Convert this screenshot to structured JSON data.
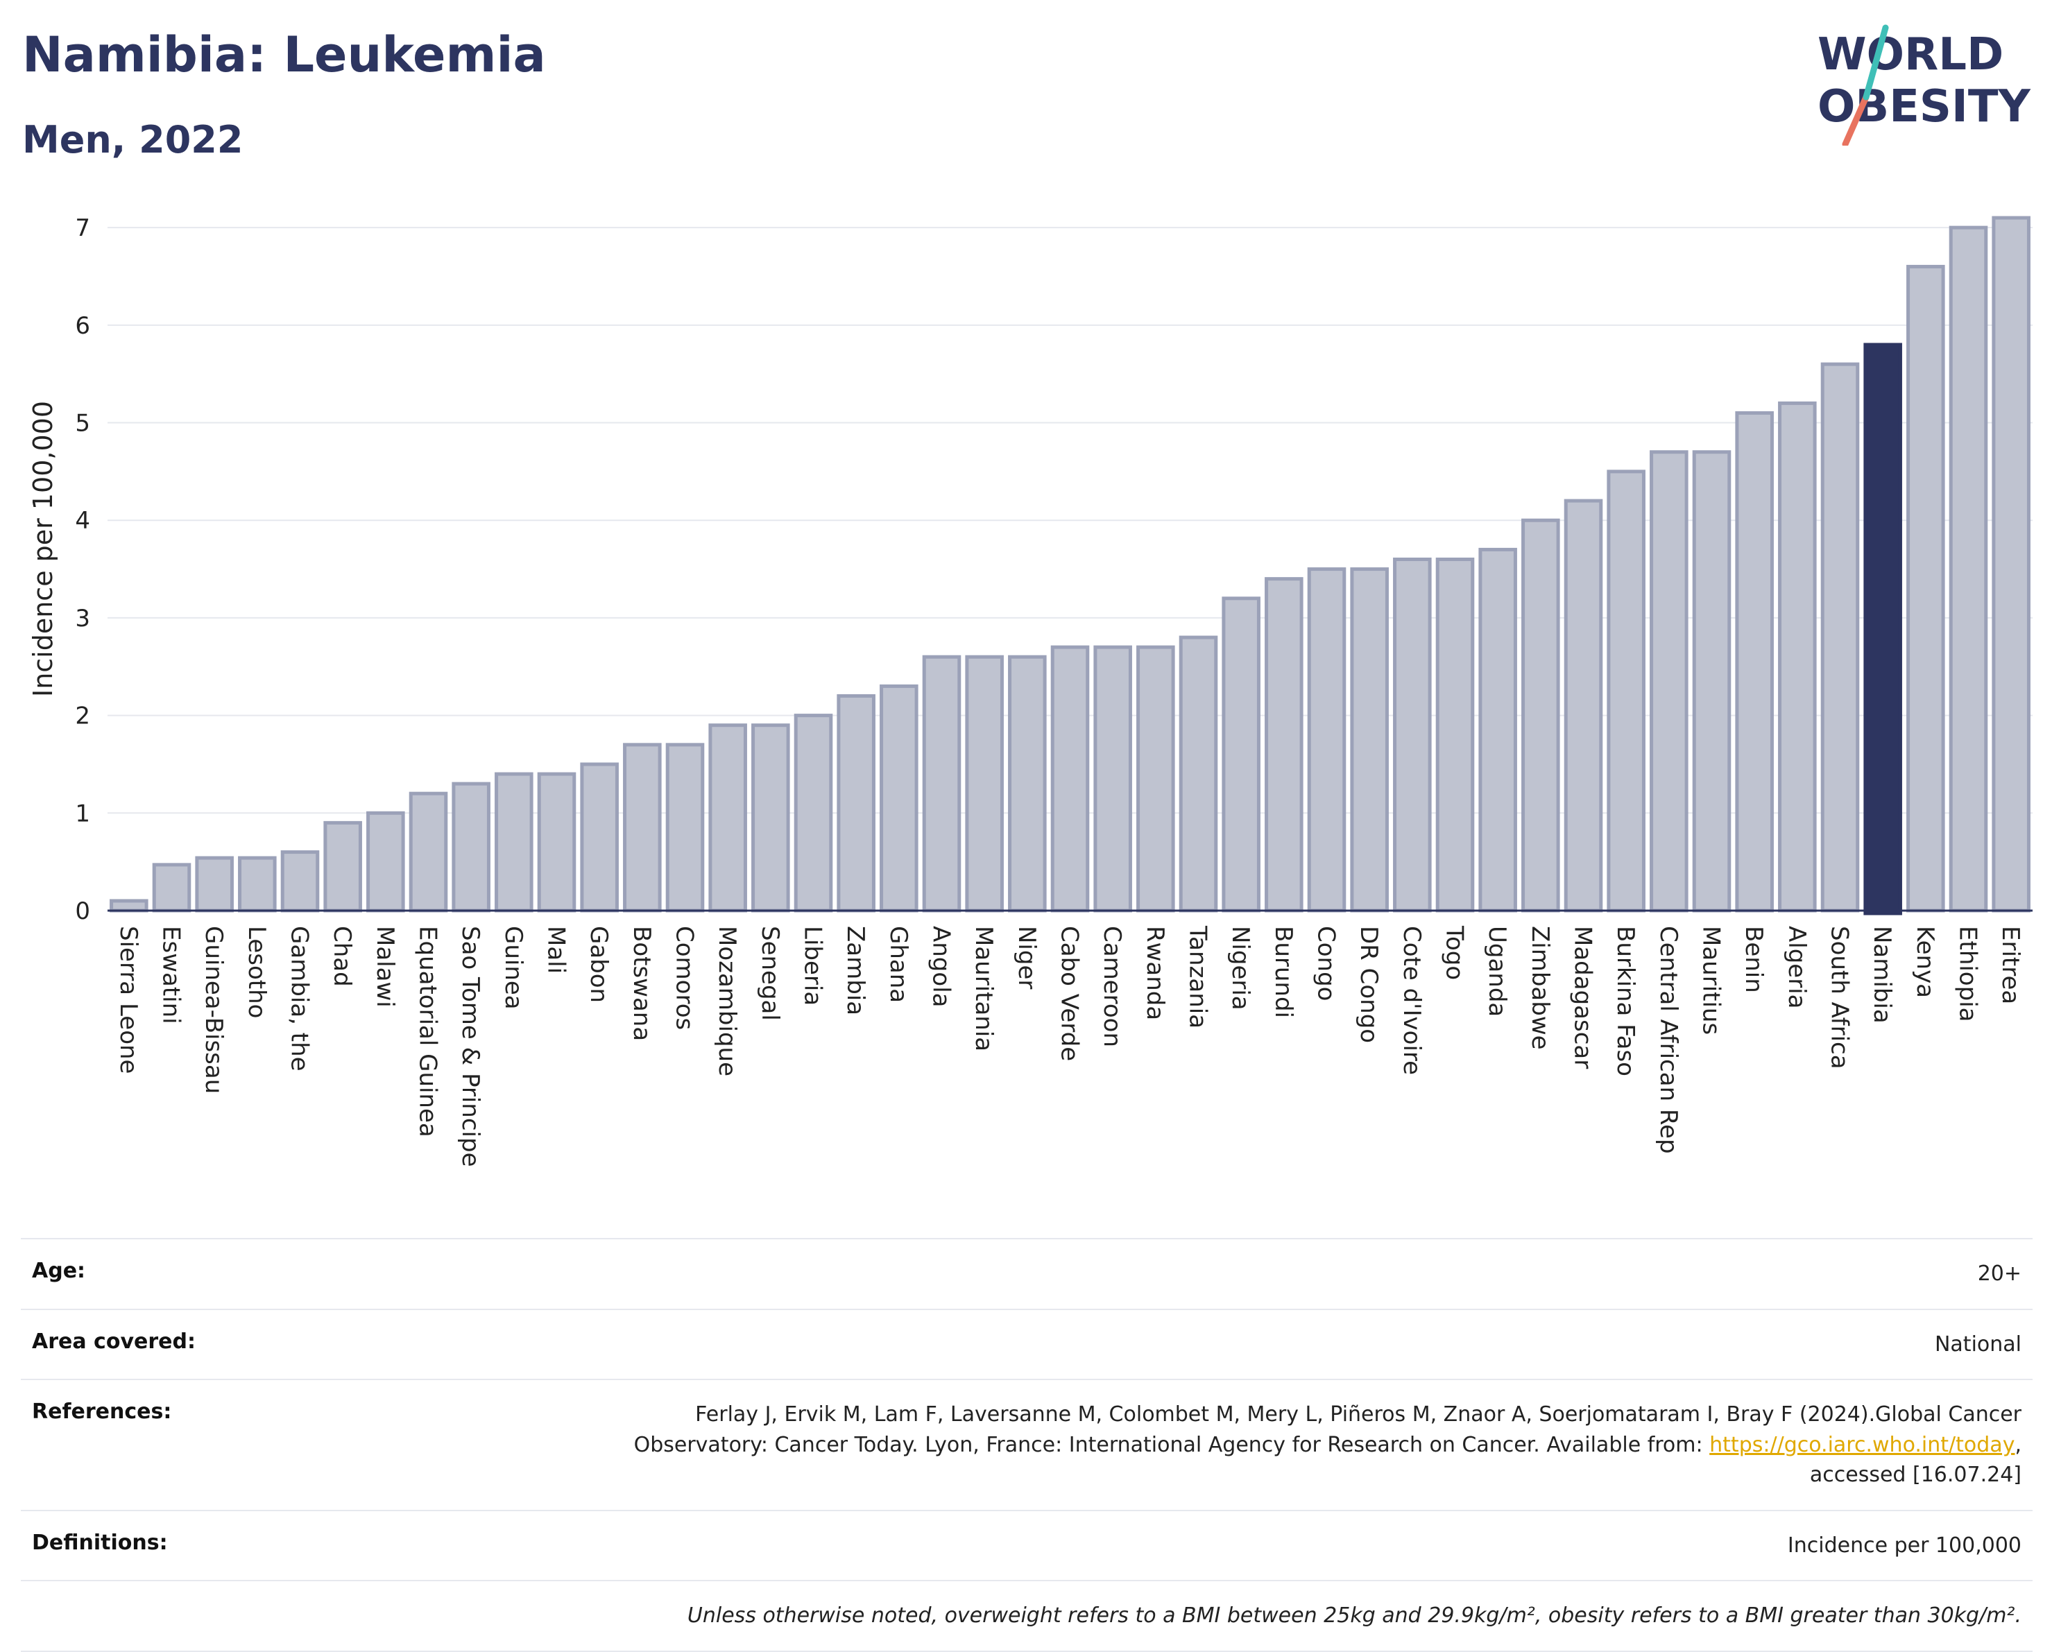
{
  "header": {
    "title": "Namibia: Leukemia",
    "subtitle": "Men, 2022",
    "logo_line1": "WORLD",
    "logo_line2": "OBESITY"
  },
  "colors": {
    "bar": "#bfc3d0",
    "bar_stroke": "#9ba1b8",
    "highlight": "#2d3560",
    "grid": "#e6e8ee",
    "text": "#222222"
  },
  "chart_data": {
    "type": "bar",
    "xlabel": "",
    "ylabel": "Incidence per 100,000",
    "ylim": [
      0,
      7.2
    ],
    "yticks": [
      0,
      1,
      2,
      3,
      4,
      5,
      6,
      7
    ],
    "grid": true,
    "highlight": "Namibia",
    "categories": [
      "Sierra Leone",
      "Eswatini",
      "Guinea-Bissau",
      "Lesotho",
      "Gambia, the",
      "Chad",
      "Malawi",
      "Equatorial Guinea",
      "Sao Tome & Principe",
      "Guinea",
      "Mali",
      "Gabon",
      "Botswana",
      "Comoros",
      "Mozambique",
      "Senegal",
      "Liberia",
      "Zambia",
      "Ghana",
      "Angola",
      "Mauritania",
      "Niger",
      "Cabo Verde",
      "Cameroon",
      "Rwanda",
      "Tanzania",
      "Nigeria",
      "Burundi",
      "Congo",
      "DR Congo",
      "Cote d'Ivoire",
      "Togo",
      "Uganda",
      "Zimbabwe",
      "Madagascar",
      "Burkina Faso",
      "Central African Rep",
      "Mauritius",
      "Benin",
      "Algeria",
      "South Africa",
      "Namibia",
      "Kenya",
      "Ethiopia",
      "Eritrea"
    ],
    "values": [
      0.1,
      0.47,
      0.54,
      0.54,
      0.6,
      0.9,
      1.0,
      1.2,
      1.3,
      1.4,
      1.4,
      1.5,
      1.7,
      1.7,
      1.9,
      1.9,
      2.0,
      2.2,
      2.3,
      2.6,
      2.6,
      2.6,
      2.7,
      2.7,
      2.7,
      2.8,
      3.2,
      3.4,
      3.5,
      3.5,
      3.6,
      3.6,
      3.7,
      4.0,
      4.2,
      4.5,
      4.7,
      4.7,
      5.1,
      5.2,
      5.6,
      5.8,
      6.6,
      7.0,
      7.1
    ]
  },
  "info": {
    "age_label": "Age:",
    "age_value": "20+",
    "area_label": "Area covered:",
    "area_value": "National",
    "references_label": "References:",
    "references_text_1": "Ferlay J, Ervik M, Lam F, Laversanne M, Colombet M, Mery L, Piñeros M, Znaor A, Soerjomataram I, Bray F (2024).Global Cancer Observatory: Cancer Today. Lyon, France: International Agency for Research on Cancer. Available from: ",
    "references_link": "https://gco.iarc.who.int/today",
    "references_text_2": ", accessed [16.07.24]",
    "definitions_label": "Definitions:",
    "definitions_value": "Incidence per 100,000",
    "note": "Unless otherwise noted, overweight refers to a BMI between 25kg and 29.9kg/m², obesity refers to a BMI greater than 30kg/m²."
  }
}
